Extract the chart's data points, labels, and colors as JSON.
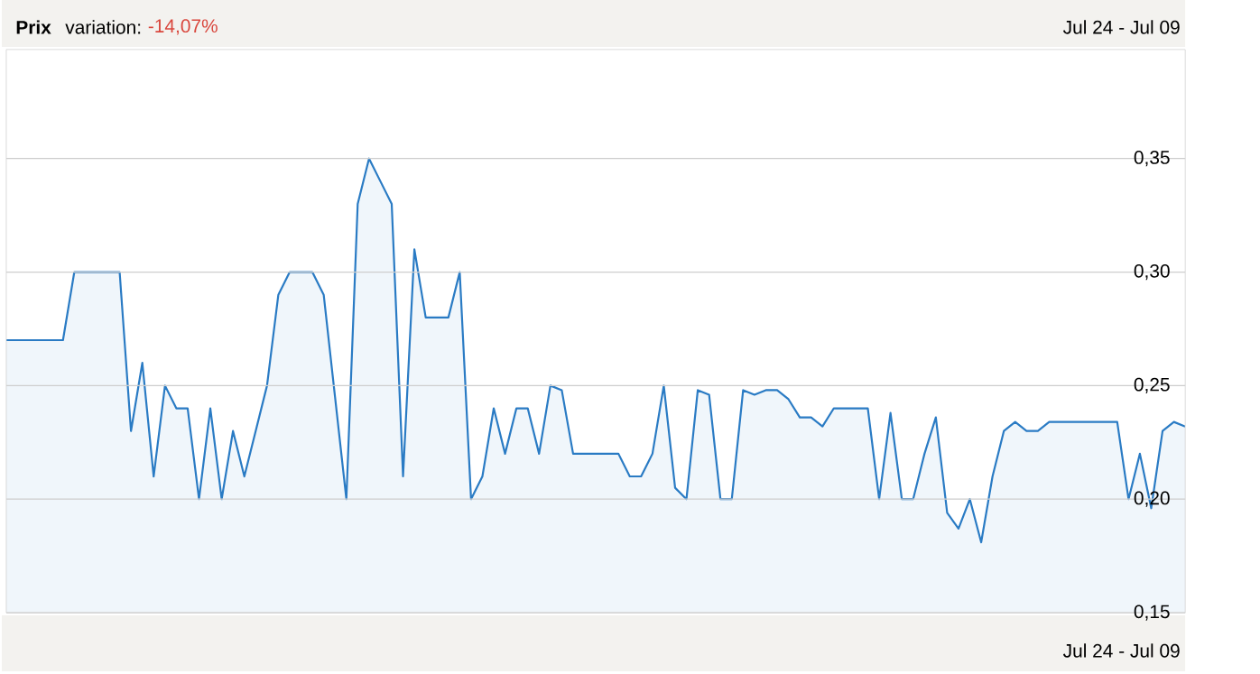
{
  "chart_data": {
    "type": "area",
    "title": "Prix",
    "annotations": [
      "variation:",
      "-14,07%",
      "Jul 24 - Jul 09",
      "Jul 24 - Jul 09"
    ],
    "categories": [
      null,
      null,
      null,
      null,
      null,
      null,
      null,
      null,
      null,
      null,
      null,
      null,
      null,
      null,
      null,
      null,
      null,
      null,
      null,
      null,
      null,
      null,
      null,
      null,
      null,
      null,
      null,
      null,
      null,
      null,
      null,
      null,
      null,
      null,
      null,
      null,
      null,
      null,
      null,
      null,
      null,
      null,
      null,
      null,
      null,
      null,
      null,
      null,
      null,
      null,
      null,
      null,
      null,
      null,
      null,
      null,
      null,
      null,
      null,
      null,
      null,
      null,
      null,
      null,
      null,
      null,
      null,
      null,
      null,
      null,
      null,
      null,
      null,
      null,
      null,
      null,
      null,
      null,
      null,
      null,
      null,
      null,
      null,
      null,
      null,
      null,
      null,
      null,
      null,
      null,
      null,
      null,
      null,
      null,
      null,
      null,
      null,
      null,
      null,
      null,
      null,
      null,
      null,
      null,
      null
    ],
    "series": [
      {
        "color": "#2a7bc4",
        "values": [
          0.27,
          0.27,
          0.27,
          0.27,
          0.27,
          0.27,
          0.3,
          0.3,
          0.3,
          0.3,
          0.3,
          0.23,
          0.26,
          0.21,
          0.25,
          0.24,
          0.24,
          0.2,
          0.24,
          0.2,
          0.23,
          0.21,
          0.23,
          0.25,
          0.29,
          0.3,
          0.3,
          0.3,
          0.29,
          0.245,
          0.2,
          0.33,
          0.35,
          0.34,
          0.33,
          0.21,
          0.31,
          0.28,
          0.28,
          0.28,
          0.3,
          0.2,
          0.21,
          0.24,
          0.22,
          0.24,
          0.24,
          0.22,
          0.25,
          0.248,
          0.22,
          0.22,
          0.22,
          0.22,
          0.22,
          0.21,
          0.21,
          0.22,
          0.25,
          0.205,
          0.2,
          0.248,
          0.246,
          0.2,
          0.2,
          0.248,
          0.246,
          0.248,
          0.248,
          0.244,
          0.236,
          0.236,
          0.232,
          0.24,
          0.24,
          0.24,
          0.24,
          0.2,
          0.238,
          0.2,
          0.2,
          0.22,
          0.236,
          0.194,
          0.187,
          0.2,
          0.181,
          0.21,
          0.23,
          0.234,
          0.23,
          0.23,
          0.234,
          0.234,
          0.234,
          0.234,
          0.234,
          0.234,
          0.234,
          0.2,
          0.22,
          0.196,
          0.23,
          0.234,
          0.232
        ]
      }
    ],
    "ylim": [
      0.15,
      0.398
    ],
    "yticks": [
      {
        "value": 0.15,
        "label": "0,15"
      },
      {
        "value": 0.2,
        "label": "0,20"
      },
      {
        "value": 0.25,
        "label": "0,25"
      },
      {
        "value": 0.3,
        "label": "0,30"
      },
      {
        "value": 0.35,
        "label": "0,35"
      }
    ],
    "grid": "y",
    "tick_labels": "y"
  }
}
